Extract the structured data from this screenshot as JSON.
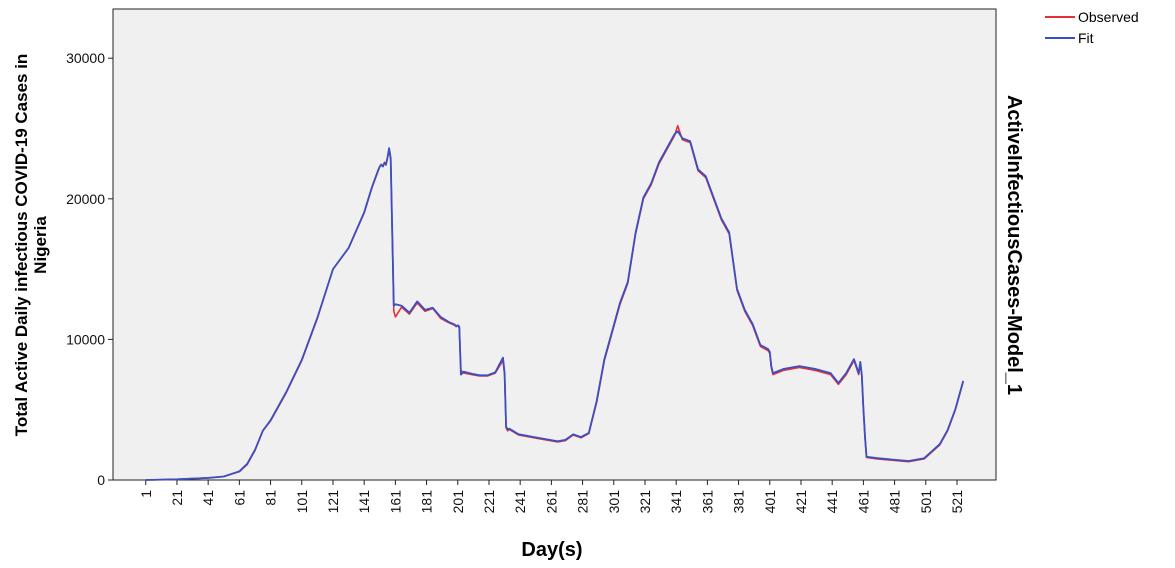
{
  "chart_data": {
    "type": "line",
    "title": "",
    "side_title": "ActiveInfectiousCases-Model_1",
    "xlabel": "Day(s)",
    "ylabel_line1": "Total Active Daily infectious COVID-19 Cases in",
    "ylabel_line2": "Nigeria",
    "xlim": [
      -20,
      546
    ],
    "ylim": [
      0,
      33500
    ],
    "x_ticks": [
      1,
      21,
      41,
      61,
      81,
      101,
      121,
      141,
      161,
      181,
      201,
      221,
      241,
      261,
      281,
      301,
      321,
      341,
      361,
      381,
      401,
      421,
      441,
      461,
      481,
      501,
      521
    ],
    "x_tick_labels": [
      "1",
      "21",
      "41",
      "61",
      "81",
      "101",
      "121",
      "141",
      "161",
      "181",
      "201",
      "221",
      "241",
      "261",
      "281",
      "301",
      "321",
      "341",
      "361",
      "381",
      "401",
      "421",
      "441",
      "461",
      "481",
      "501",
      "521"
    ],
    "y_ticks": [
      0,
      10000,
      20000,
      30000
    ],
    "y_tick_labels": [
      "0",
      "10000",
      "20000",
      "30000"
    ],
    "grid": false,
    "plot_background": "#f0f0f0",
    "legend_position": "top-right-outside",
    "series": [
      {
        "name": "Observed",
        "color": "#e8303a",
        "x": [
          1,
          21,
          41,
          51,
          61,
          66,
          71,
          76,
          81,
          91,
          101,
          111,
          121,
          131,
          141,
          146,
          150,
          151,
          152,
          153,
          154,
          155,
          156,
          157,
          158,
          160,
          161,
          165,
          170,
          175,
          180,
          185,
          190,
          195,
          199,
          200,
          201,
          202,
          203,
          205,
          210,
          215,
          220,
          225,
          230,
          231,
          232,
          233,
          234,
          240,
          250,
          260,
          265,
          270,
          275,
          280,
          285,
          290,
          295,
          300,
          305,
          310,
          315,
          320,
          325,
          330,
          335,
          340,
          342,
          345,
          350,
          355,
          360,
          365,
          370,
          375,
          380,
          385,
          390,
          395,
          400,
          401,
          402,
          403,
          410,
          420,
          430,
          440,
          445,
          450,
          455,
          458,
          459,
          460,
          461,
          462,
          463,
          470,
          480,
          490,
          500,
          505,
          510,
          515,
          520,
          525
        ],
        "y": [
          0,
          50,
          150,
          250,
          600,
          1100,
          2100,
          3500,
          4200,
          6200,
          8500,
          11500,
          15000,
          16500,
          19000,
          20800,
          22000,
          22300,
          22400,
          22300,
          22600,
          22400,
          23000,
          23500,
          22800,
          12000,
          11600,
          12300,
          11800,
          12600,
          12000,
          12200,
          11500,
          11200,
          11000,
          10900,
          11000,
          10800,
          7800,
          7600,
          7500,
          7400,
          7400,
          7600,
          8500,
          7500,
          3700,
          3500,
          3600,
          3200,
          3000,
          2800,
          2700,
          2800,
          3200,
          3000,
          3300,
          5500,
          8500,
          10500,
          12500,
          14000,
          17500,
          20000,
          21000,
          22500,
          23500,
          24500,
          25200,
          24200,
          24000,
          22000,
          21500,
          20000,
          18500,
          17500,
          13500,
          12000,
          11000,
          9500,
          9200,
          9000,
          8000,
          7500,
          7800,
          8000,
          7800,
          7500,
          6800,
          7500,
          8500,
          7500,
          8300,
          7400,
          5000,
          3000,
          1600,
          1500,
          1400,
          1300,
          1500,
          2000,
          2500,
          3500,
          5000,
          7000
        ]
      },
      {
        "name": "Fit",
        "color": "#3a4fc0",
        "x": [
          1,
          21,
          41,
          51,
          61,
          66,
          71,
          76,
          81,
          91,
          101,
          111,
          121,
          131,
          141,
          146,
          150,
          151,
          152,
          153,
          154,
          155,
          156,
          157,
          158,
          160,
          161,
          165,
          170,
          175,
          180,
          185,
          190,
          195,
          199,
          200,
          201,
          202,
          203,
          205,
          210,
          215,
          220,
          225,
          230,
          231,
          232,
          233,
          234,
          240,
          250,
          260,
          265,
          270,
          275,
          280,
          285,
          290,
          295,
          300,
          305,
          310,
          315,
          320,
          325,
          330,
          335,
          340,
          342,
          345,
          350,
          355,
          360,
          365,
          370,
          375,
          380,
          385,
          390,
          395,
          400,
          401,
          402,
          403,
          410,
          420,
          430,
          440,
          445,
          450,
          455,
          458,
          459,
          460,
          461,
          462,
          463,
          470,
          480,
          490,
          500,
          505,
          510,
          515,
          520,
          525
        ],
        "y": [
          0,
          50,
          150,
          250,
          620,
          1150,
          2150,
          3500,
          4250,
          6250,
          8550,
          11550,
          15000,
          16500,
          19050,
          20850,
          22050,
          22300,
          22450,
          22300,
          22550,
          22450,
          22950,
          23600,
          22900,
          12400,
          12500,
          12400,
          11900,
          12700,
          12100,
          12250,
          11600,
          11250,
          11050,
          10950,
          11000,
          10900,
          7500,
          7700,
          7550,
          7450,
          7450,
          7650,
          8700,
          7600,
          3800,
          3600,
          3650,
          3250,
          3050,
          2850,
          2750,
          2850,
          3250,
          3050,
          3350,
          5600,
          8600,
          10600,
          12600,
          14100,
          17600,
          20100,
          21100,
          22600,
          23600,
          24600,
          24800,
          24300,
          24100,
          22100,
          21600,
          20100,
          18600,
          17600,
          13600,
          12100,
          11100,
          9600,
          9300,
          9100,
          8100,
          7600,
          7900,
          8100,
          7900,
          7600,
          6900,
          7600,
          8600,
          7600,
          8400,
          7500,
          5100,
          3100,
          1650,
          1550,
          1450,
          1350,
          1550,
          2050,
          2550,
          3550,
          5050,
          7050
        ]
      }
    ]
  }
}
